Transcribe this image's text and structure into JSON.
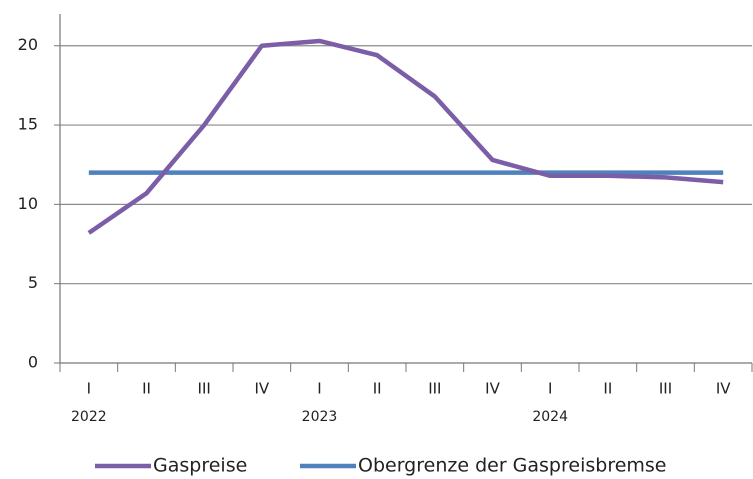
{
  "chart_data": {
    "type": "line",
    "categories": [
      "I",
      "II",
      "III",
      "IV",
      "I",
      "II",
      "III",
      "IV",
      "I",
      "II",
      "III",
      "IV"
    ],
    "years": [
      "2022",
      "2023",
      "2024"
    ],
    "series": [
      {
        "name": "Gaspreise",
        "color": "#7b5ea7",
        "values": [
          8.2,
          10.7,
          15,
          20,
          20.3,
          19.4,
          16.8,
          12.8,
          11.8,
          11.8,
          11.7,
          11.4
        ]
      },
      {
        "name": "Obergrenze der Gaspreisbremse",
        "color": "#4f81bd",
        "values": [
          12,
          12,
          12,
          12,
          12,
          12,
          12,
          12,
          12,
          12,
          12,
          12
        ]
      }
    ],
    "ylim": [
      0,
      22
    ],
    "yticks": [
      0,
      5,
      10,
      15,
      20
    ],
    "grid": true,
    "legend": "bottom"
  }
}
